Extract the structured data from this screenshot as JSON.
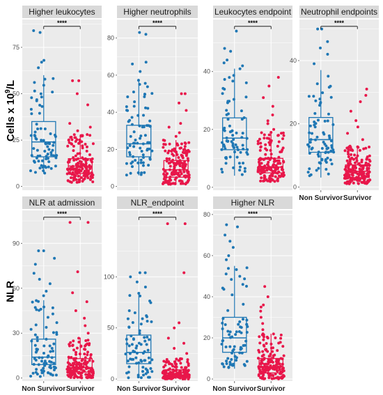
{
  "figure": {
    "ylabel_top_main": "Cells x 10",
    "ylabel_top_exp": "9",
    "ylabel_top_tail": "/L",
    "ylabel_bottom": "NLR"
  },
  "colors": {
    "non_survivor": "#1f77b4",
    "survivor": "#e8174a",
    "panel_bg": "#ebebeb",
    "strip_bg": "#d9d9d9",
    "grid": "#ffffff"
  },
  "chart_data": [
    {
      "type": "box",
      "title": "Higher leukocytes",
      "categories": [
        "Non Survivor",
        "Survivor"
      ],
      "show_x_labels": false,
      "ylim": [
        -2,
        90
      ],
      "yticks": [
        0,
        25,
        50,
        75
      ],
      "significance": "****",
      "series": [
        {
          "category": "Non Survivor",
          "min": 7,
          "q1": 16,
          "median": 24,
          "q3": 35,
          "max": 60,
          "outliers": [
            64,
            67,
            68,
            83,
            84
          ]
        },
        {
          "category": "Survivor",
          "min": 2,
          "q1": 7,
          "median": 11,
          "q3": 15,
          "max": 28,
          "outliers": [
            30,
            32,
            34,
            44,
            50,
            57,
            57
          ]
        }
      ]
    },
    {
      "type": "box",
      "title": "Higher neutrophils",
      "categories": [
        "Non Survivor",
        "Survivor"
      ],
      "show_x_labels": false,
      "ylim": [
        -2,
        90
      ],
      "yticks": [
        0,
        20,
        40,
        60,
        80
      ],
      "significance": "****",
      "series": [
        {
          "category": "Non Survivor",
          "min": 6,
          "q1": 16,
          "median": 23,
          "q3": 33,
          "max": 58,
          "outliers": [
            62,
            66,
            67,
            82,
            83
          ]
        },
        {
          "category": "Survivor",
          "min": 1,
          "q1": 5,
          "median": 9,
          "q3": 14,
          "max": 25,
          "outliers": [
            27,
            29,
            32,
            34,
            41,
            45,
            50,
            50
          ]
        }
      ]
    },
    {
      "type": "box",
      "title": "Leukocytes endpoint",
      "categories": [
        "Non Survivor",
        "Survivor"
      ],
      "show_x_labels": false,
      "ylim": [
        -1,
        58
      ],
      "yticks": [
        0,
        20,
        40
      ],
      "significance": "****",
      "series": [
        {
          "category": "Non Survivor",
          "min": 4,
          "q1": 13,
          "median": 17,
          "q3": 24,
          "max": 41,
          "outliers": [
            42,
            43,
            44,
            47,
            48,
            54
          ]
        },
        {
          "category": "Survivor",
          "min": 2,
          "q1": 5,
          "median": 7,
          "q3": 10,
          "max": 19,
          "outliers": [
            20,
            22,
            23,
            25,
            28,
            31,
            35,
            38
          ]
        }
      ]
    },
    {
      "type": "box",
      "title": "Neutrophil endpoints",
      "categories": [
        "Non Survivor",
        "Survivor"
      ],
      "show_x_labels": true,
      "ylim": [
        -1,
        53
      ],
      "yticks": [
        0,
        20,
        40
      ],
      "significance": "****",
      "series": [
        {
          "category": "Non Survivor",
          "min": 3,
          "q1": 11,
          "median": 15,
          "q3": 22,
          "max": 37,
          "outliers": [
            39,
            42,
            44,
            46,
            50,
            50
          ]
        },
        {
          "category": "Survivor",
          "min": 1,
          "q1": 3,
          "median": 5,
          "q3": 7,
          "max": 13,
          "outliers": [
            15,
            17,
            19,
            21,
            24,
            27,
            29,
            31
          ]
        }
      ]
    },
    {
      "type": "box",
      "title": "NLR at admission",
      "categories": [
        "Non Survivor",
        "Survivor"
      ],
      "show_x_labels": true,
      "ylim": [
        -2,
        112
      ],
      "yticks": [
        0,
        30,
        60,
        90
      ],
      "significance": "****",
      "series": [
        {
          "category": "Non Survivor",
          "min": 1,
          "q1": 9,
          "median": 14,
          "q3": 26,
          "max": 52,
          "outliers": [
            55,
            58,
            63,
            66,
            70,
            76,
            80,
            85,
            85
          ]
        },
        {
          "category": "Survivor",
          "min": 0,
          "q1": 4,
          "median": 7,
          "q3": 13,
          "max": 27,
          "outliers": [
            30,
            35,
            40,
            45,
            51,
            57,
            71,
            104,
            104
          ]
        }
      ]
    },
    {
      "type": "box",
      "title": "NLR_endpoint",
      "categories": [
        "Non Survivor",
        "Survivor"
      ],
      "show_x_labels": true,
      "ylim": [
        -2,
        165
      ],
      "yticks": [
        0,
        50,
        100
      ],
      "significance": "****",
      "series": [
        {
          "category": "Non Survivor",
          "min": 1,
          "q1": 15,
          "median": 26,
          "q3": 43,
          "max": 85,
          "outliers": [
            90,
            95,
            100,
            104,
            104
          ]
        },
        {
          "category": "Survivor",
          "min": 0,
          "q1": 2,
          "median": 4,
          "q3": 9,
          "max": 20,
          "outliers": [
            25,
            30,
            35,
            40,
            50,
            55,
            104,
            152,
            152
          ]
        }
      ]
    },
    {
      "type": "box",
      "title": "Higher NLR",
      "categories": [
        "Non Survivor",
        "Survivor"
      ],
      "show_x_labels": true,
      "ylim": [
        -1,
        82
      ],
      "yticks": [
        0,
        20,
        40,
        60,
        80
      ],
      "significance": "****",
      "series": [
        {
          "category": "Non Survivor",
          "min": 5,
          "q1": 13,
          "median": 20,
          "q3": 30,
          "max": 55,
          "outliers": [
            58,
            60,
            64,
            67,
            70,
            74,
            75
          ]
        },
        {
          "category": "Survivor",
          "min": 0,
          "q1": 3,
          "median": 6,
          "q3": 10,
          "max": 22,
          "outliers": [
            24,
            27,
            30,
            33,
            35,
            36,
            40,
            45
          ]
        }
      ]
    }
  ]
}
